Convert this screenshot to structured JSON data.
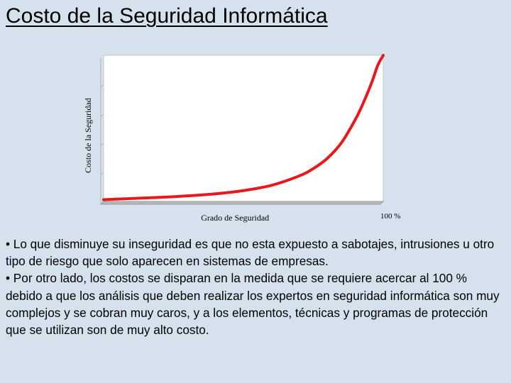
{
  "title": "Costo de la Seguridad Informática",
  "chart_data": {
    "type": "line",
    "title": "",
    "xlabel": "Grado de Seguridad",
    "ylabel": "Costo de la Seguridad",
    "x_end_label": "100 %",
    "grid": true,
    "legend": "none",
    "series": [
      {
        "color": "#e8191d",
        "x": [
          0,
          10,
          20,
          30,
          40,
          50,
          60,
          70,
          75,
          80,
          85,
          90,
          93,
          96,
          98,
          100
        ],
        "y": [
          1.2,
          2.0,
          2.8,
          3.8,
          5.2,
          7.4,
          11.0,
          17.5,
          22.5,
          29.5,
          40.0,
          56.0,
          68.0,
          82.0,
          93.0,
          100
        ]
      }
    ],
    "xlim": [
      0,
      100
    ],
    "ylim": [
      0,
      100
    ]
  },
  "bullets": [
    "• Lo que disminuye su inseguridad es que no esta expuesto a sabotajes, intrusiones u otro tipo de riesgo que solo aparecen en sistemas de empresas.",
    "• Por otro lado, los costos se disparan en la medida que se requiere acercar al 100 % debido a que los análisis que deben realizar los expertos en seguridad informática son muy complejos y se cobran muy caros, y a los elementos, técnicas y programas de protección que se utilizan son de muy alto costo."
  ]
}
